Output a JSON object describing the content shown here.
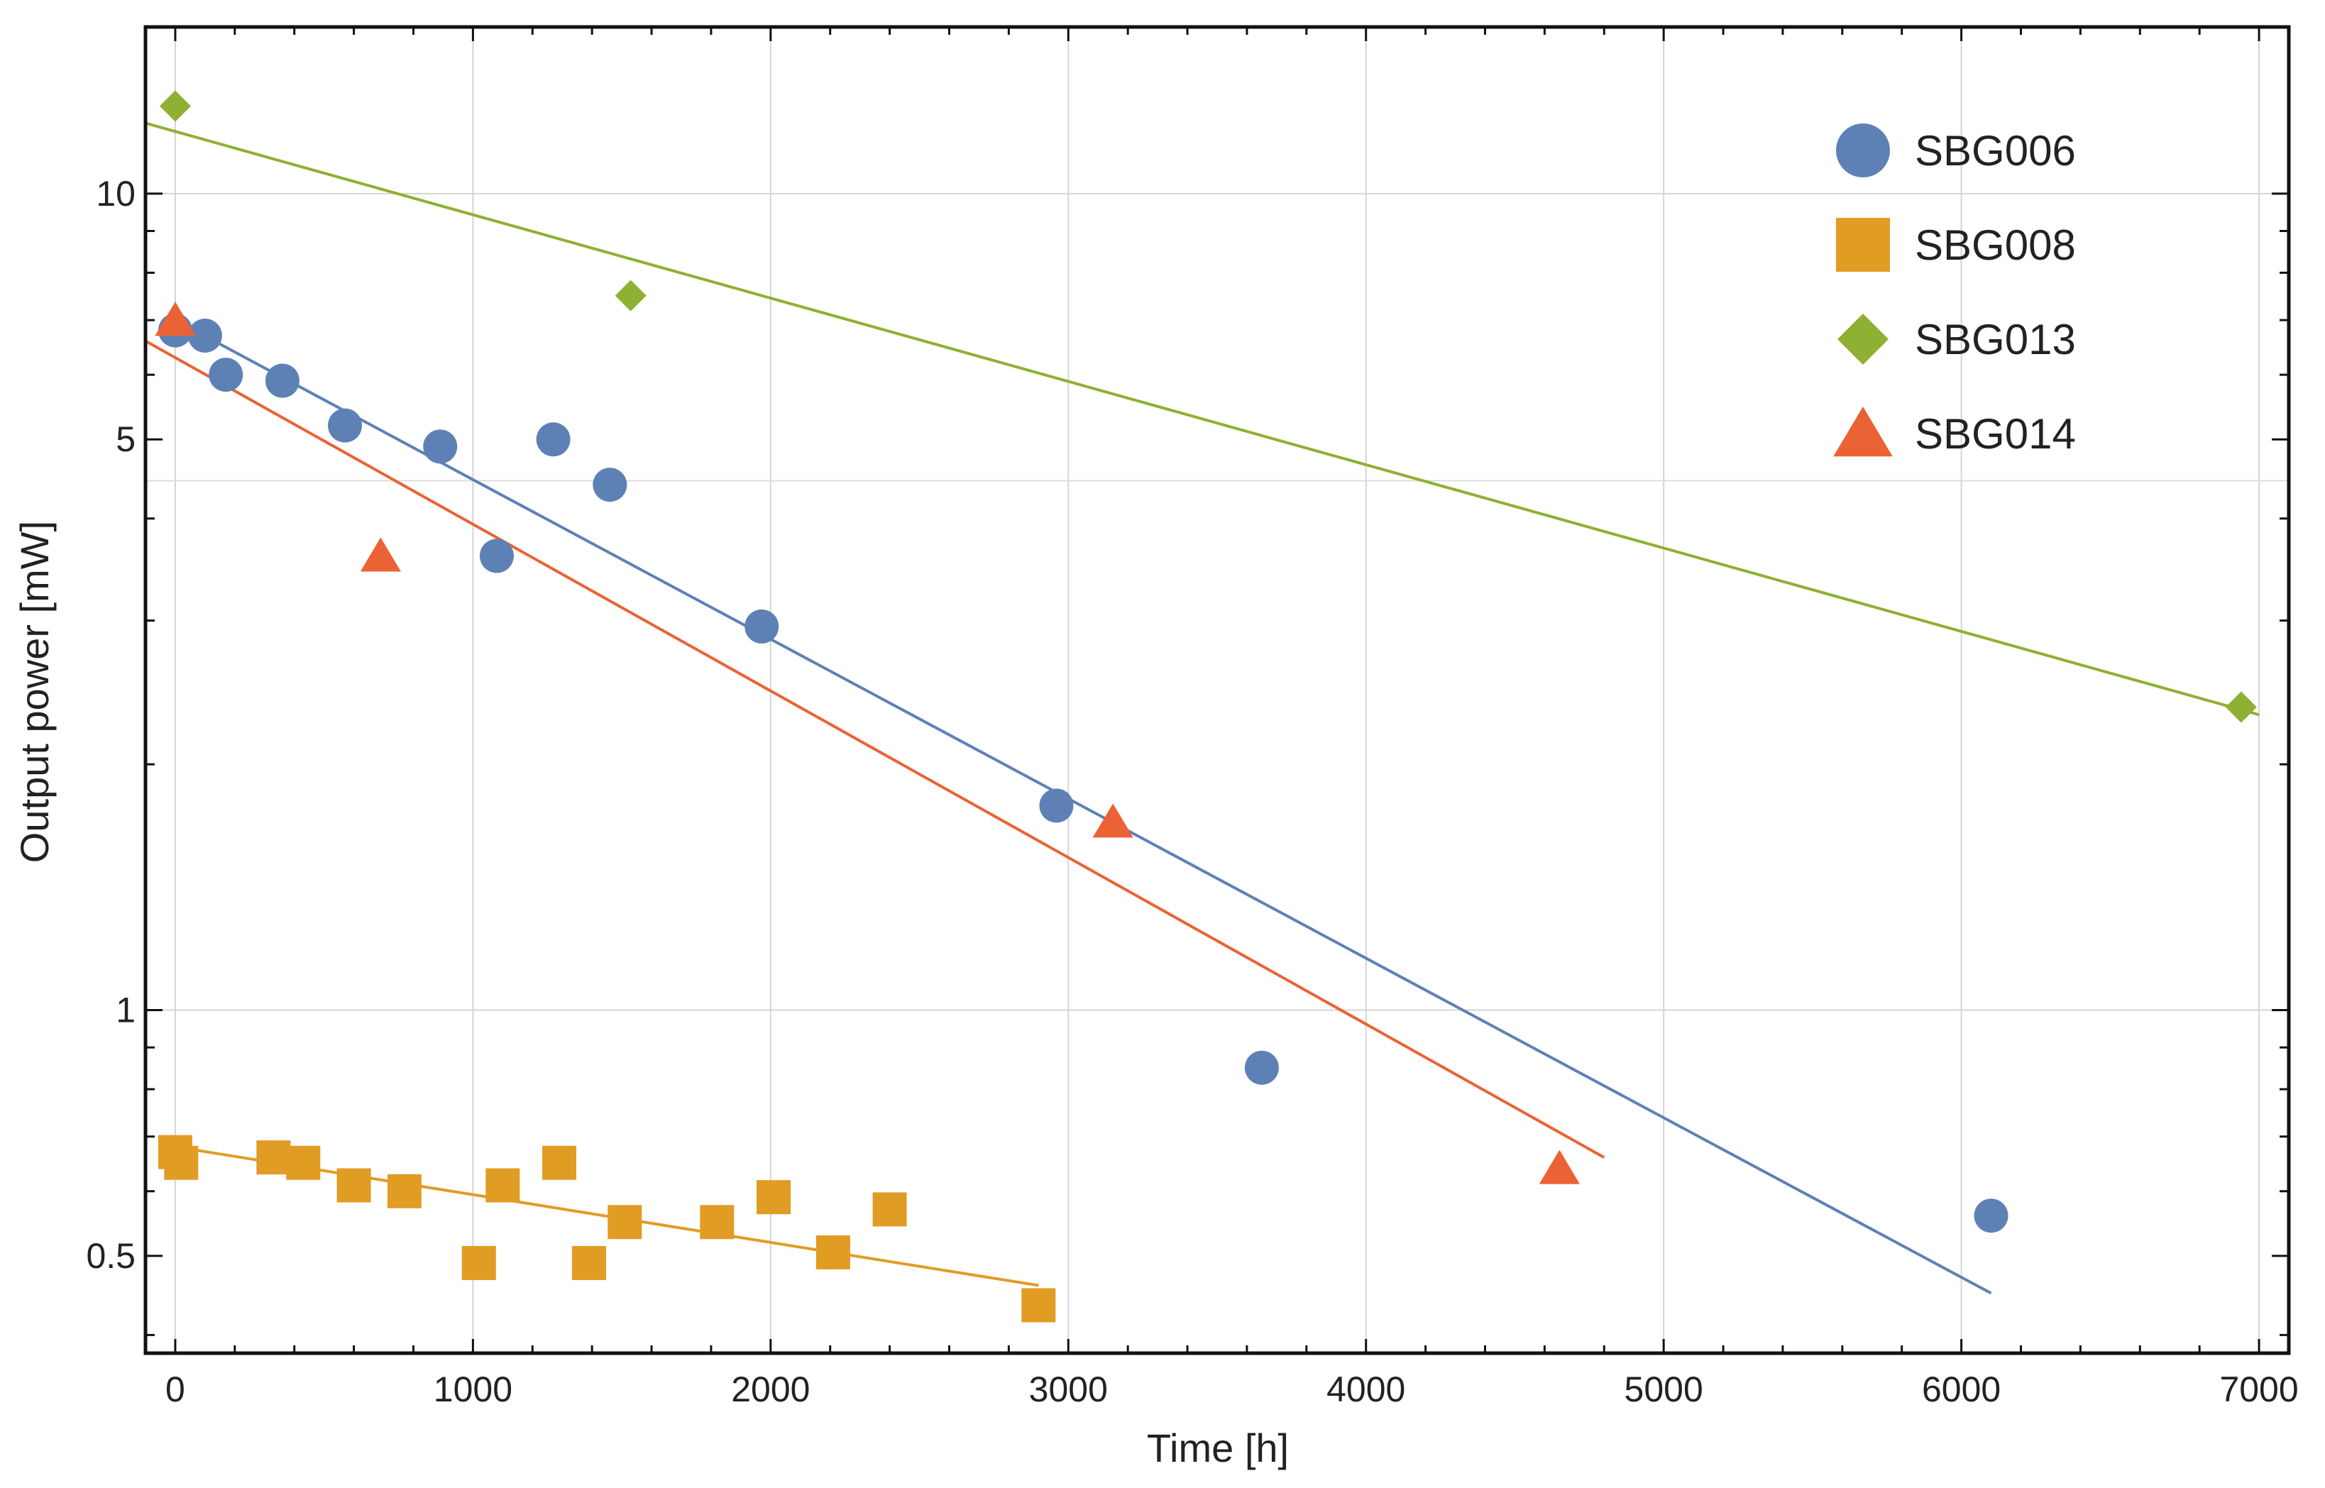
{
  "chart_data": {
    "type": "scatter",
    "title": "",
    "xlabel": "Time [h]",
    "ylabel": "Output power [mW]",
    "xlim": [
      -100,
      7100
    ],
    "ylim": [
      0.38,
      16
    ],
    "yscale": "log",
    "grid": true,
    "legend_position": "top-right",
    "x_ticks": [
      0,
      1000,
      2000,
      3000,
      4000,
      5000,
      6000,
      7000
    ],
    "x_tick_labels": [
      "0",
      "1000",
      "2000",
      "3000",
      "4000",
      "5000",
      "6000",
      "7000"
    ],
    "y_ticks": [
      0.5,
      1,
      5,
      10
    ],
    "y_tick_labels": [
      "0.5",
      "1",
      "5",
      "10"
    ],
    "series": [
      {
        "name": "SBG006",
        "marker": "circle",
        "color": "#5E81B5",
        "x": [
          0,
          100,
          170,
          360,
          570,
          890,
          1080,
          1270,
          1460,
          1970,
          2960,
          3650,
          6100
        ],
        "y": [
          6.8,
          6.7,
          6.0,
          5.9,
          5.2,
          4.9,
          3.6,
          5.0,
          4.4,
          2.95,
          1.78,
          0.85,
          0.56
        ],
        "fit": {
          "x": [
            0,
            6100
          ],
          "y": [
            7.0,
            0.45
          ]
        }
      },
      {
        "name": "SBG008",
        "marker": "square",
        "color": "#E19C24",
        "x": [
          0,
          20,
          330,
          430,
          600,
          770,
          1020,
          1100,
          1290,
          1390,
          1510,
          1820,
          2010,
          2210,
          2400,
          2900
        ],
        "y": [
          0.67,
          0.65,
          0.66,
          0.65,
          0.61,
          0.6,
          0.49,
          0.61,
          0.65,
          0.49,
          0.55,
          0.55,
          0.59,
          0.505,
          0.57,
          0.435
        ],
        "fit": {
          "x": [
            0,
            2900
          ],
          "y": [
            0.68,
            0.46
          ]
        }
      },
      {
        "name": "SBG013",
        "marker": "diamond",
        "color": "#8FB032",
        "x": [
          0,
          1530,
          6940
        ],
        "y": [
          12.8,
          7.5,
          2.35
        ],
        "fit": {
          "x": [
            -100,
            7000
          ],
          "y": [
            12.2,
            2.3
          ]
        }
      },
      {
        "name": "SBG014",
        "marker": "triangle",
        "color": "#EB6235",
        "x": [
          0,
          690,
          3150,
          4650
        ],
        "y": [
          7.0,
          3.6,
          1.7,
          0.64
        ],
        "fit": {
          "x": [
            -100,
            4800
          ],
          "y": [
            6.6,
            0.66
          ]
        }
      }
    ]
  }
}
